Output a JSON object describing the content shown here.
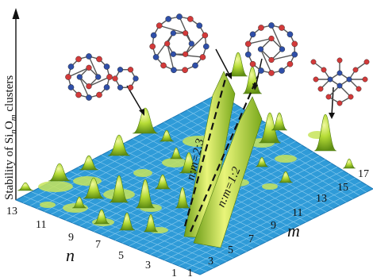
{
  "figure": {
    "y_axis_label": {
      "prefix": "Stability of Si",
      "sub_n": "n",
      "mid": "O",
      "sub_m": "m",
      "suffix": " clusters"
    },
    "n_axis": {
      "label": "n",
      "ticks": [
        "1",
        "3",
        "5",
        "7",
        "9",
        "11",
        "13"
      ]
    },
    "m_axis": {
      "label": "m",
      "ticks": [
        "1",
        "3",
        "5",
        "7",
        "9",
        "11",
        "13",
        "15",
        "17"
      ]
    },
    "ratio_lines": [
      {
        "label": "n:m=2:3"
      },
      {
        "label": "n:m=1:2"
      }
    ],
    "colors": {
      "surface": "#2f9bd8",
      "grid": "#9ad4f2",
      "peak": "#9ecb2a",
      "peak_highlight": "#e8f48c",
      "silicon": "#2f4fa8",
      "oxygen": "#d23a3a"
    },
    "inset_clusters": [
      {
        "name": "cluster-structure-1"
      },
      {
        "name": "cluster-structure-2"
      },
      {
        "name": "cluster-structure-3"
      },
      {
        "name": "cluster-structure-4"
      }
    ]
  }
}
